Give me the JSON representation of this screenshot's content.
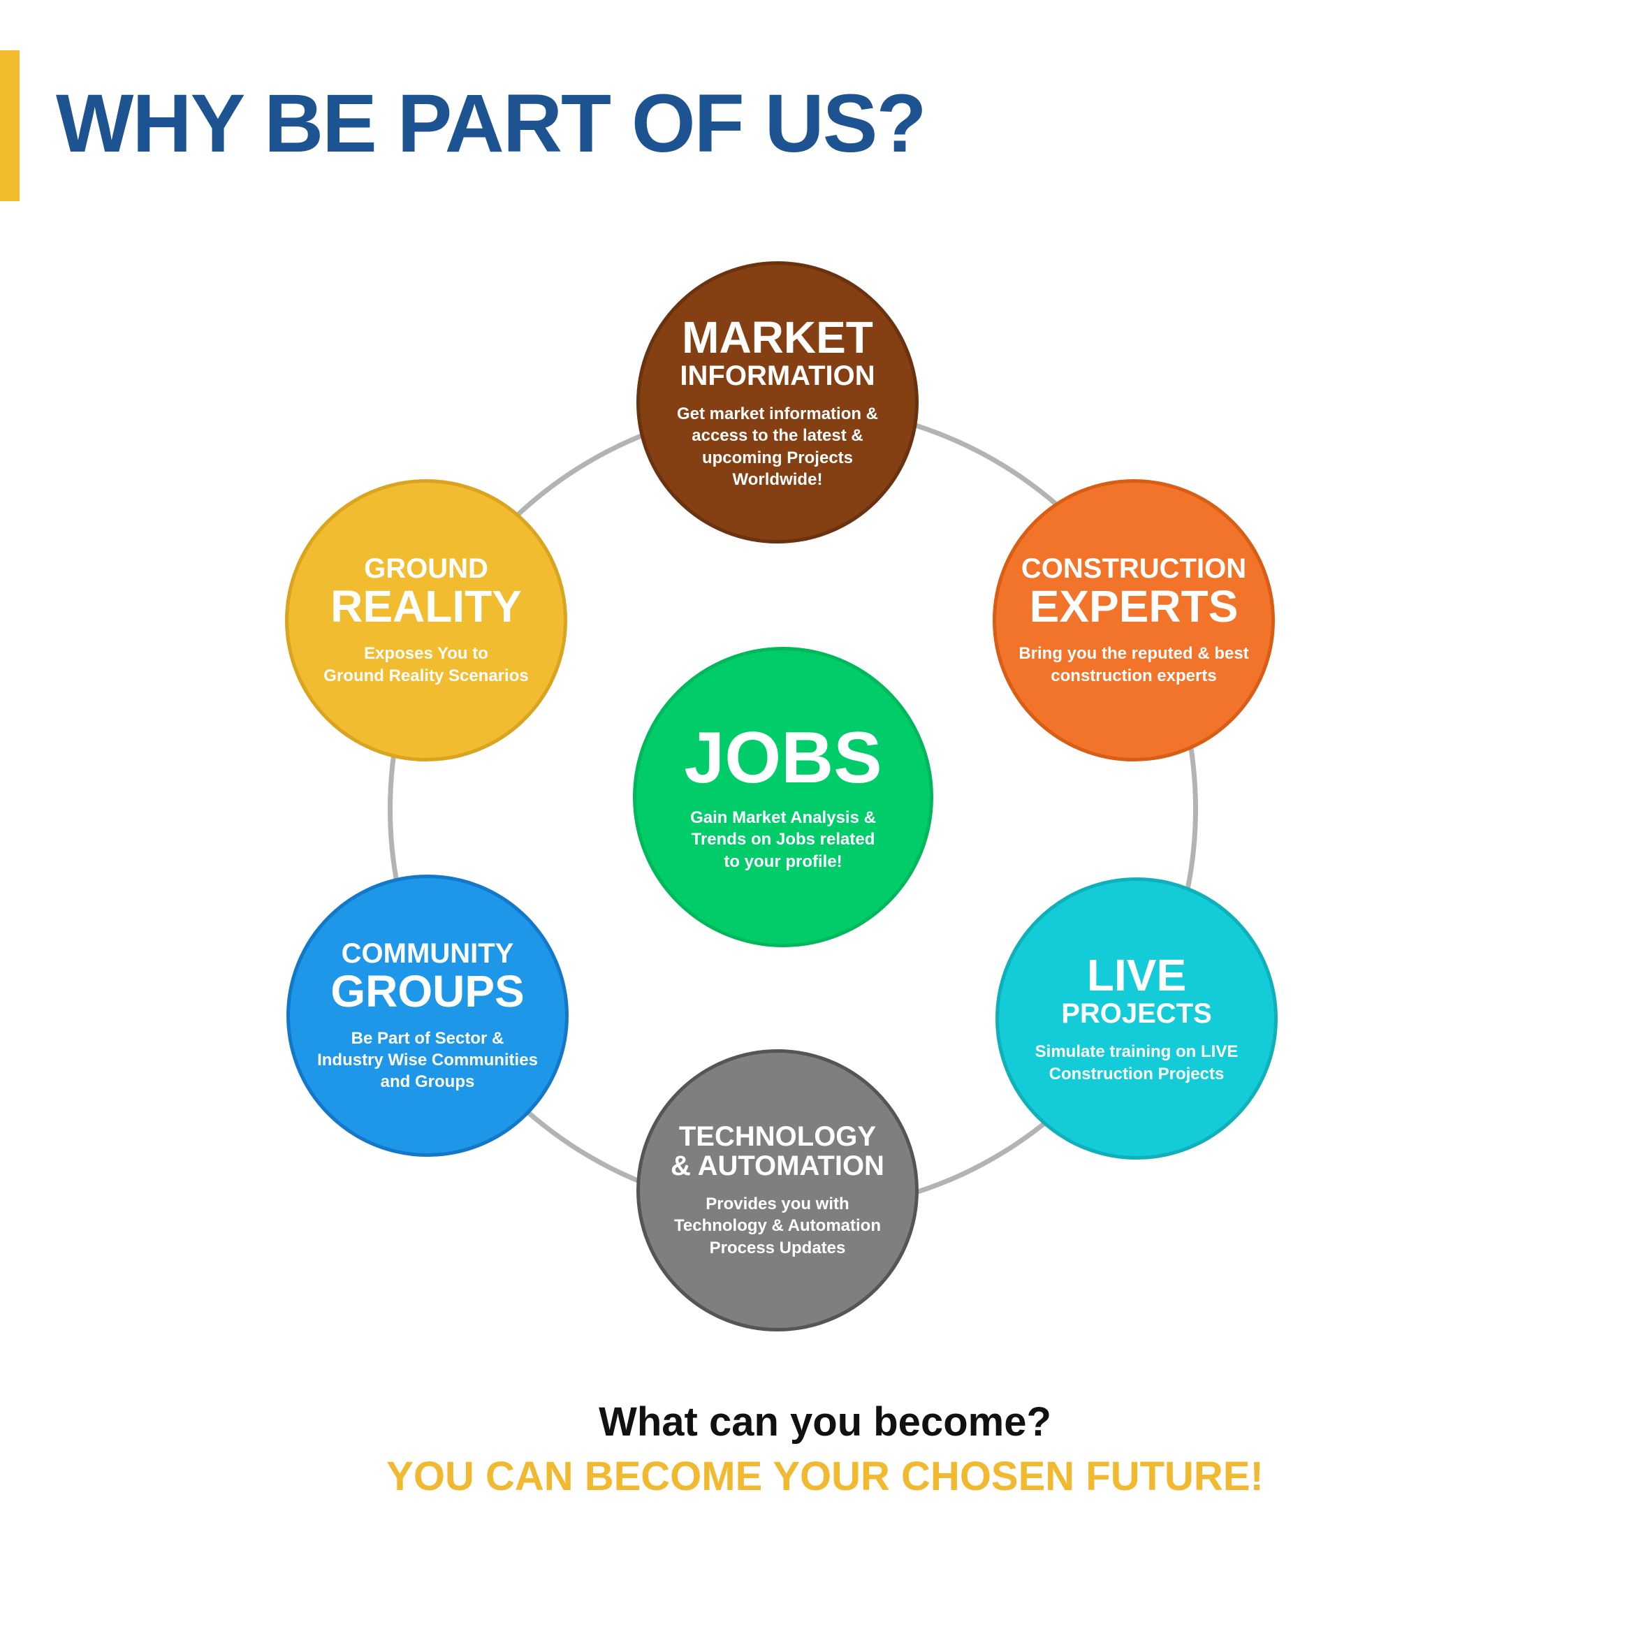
{
  "header": {
    "title": "WHY BE PART OF US?",
    "accent_color": "#F2BC2F",
    "title_color": "#1C5390"
  },
  "diagram": {
    "ring_color": "#B3B3B3",
    "center": {
      "title": "JOBS",
      "description": "Gain Market Analysis &\nTrends  on Jobs related\nto your profile!",
      "color": "#00CC6A"
    },
    "nodes": [
      {
        "id": "market",
        "line1": "MARKET",
        "line2": "INFORMATION",
        "description": "Get market information &\naccess to the latest &\nupcoming Projects\nWorldwide!",
        "color": "#843F12"
      },
      {
        "id": "experts",
        "line1": "CONSTRUCTION",
        "line2": "EXPERTS",
        "description": "Bring you the reputed & best\nconstruction experts",
        "color": "#F2742A"
      },
      {
        "id": "live",
        "line1": "LIVE",
        "line2": "PROJECTS",
        "description": "Simulate training on LIVE\nConstruction Projects",
        "color": "#13CCD8"
      },
      {
        "id": "technology",
        "line1": "TECHNOLOGY",
        "line2": "& AUTOMATION",
        "description": "Provides you  with\nTechnology & Automation\nProcess Updates",
        "color": "#7F7F7F"
      },
      {
        "id": "community",
        "line1": "COMMUNITY",
        "line2": "GROUPS",
        "description": "Be Part of Sector &\nIndustry Wise Communities\nand Groups",
        "color": "#1F97E8"
      },
      {
        "id": "ground",
        "line1": "GROUND",
        "line2": "REALITY",
        "description": "Exposes You to\nGround Reality Scenarios",
        "color": "#F1BC2F"
      }
    ]
  },
  "footer": {
    "question": "What can you become?",
    "answer": "YOU CAN BECOME YOUR CHOSEN FUTURE!",
    "answer_color": "#F0B92F"
  }
}
